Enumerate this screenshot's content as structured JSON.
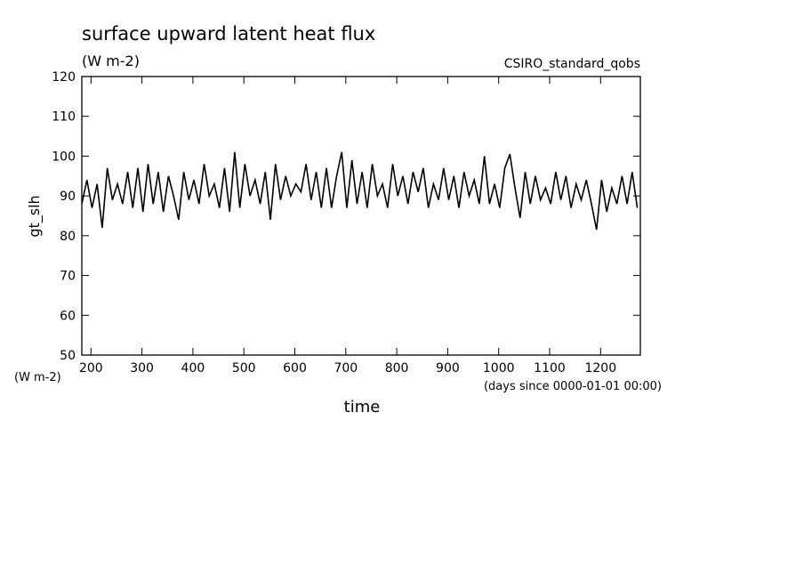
{
  "chart_data": {
    "type": "line",
    "title": "surface upward latent heat flux",
    "subtitle": "(W m-2)",
    "source": "CSIRO_standard_qobs",
    "ylabel": "gt_slh",
    "y_units": "(W m-2)",
    "xlabel": "time",
    "x_units": "(days since 0000-01-01 00:00)",
    "xlim": [
      182,
      1278
    ],
    "ylim": [
      50,
      120
    ],
    "xticks": [
      200,
      300,
      400,
      500,
      600,
      700,
      800,
      900,
      1000,
      1100,
      1200
    ],
    "yticks": [
      50,
      60,
      70,
      80,
      90,
      100,
      110,
      120
    ],
    "x": [
      182,
      192,
      202,
      212,
      222,
      232,
      242,
      252,
      262,
      272,
      282,
      292,
      302,
      312,
      322,
      332,
      342,
      352,
      362,
      372,
      382,
      392,
      402,
      412,
      422,
      432,
      442,
      452,
      462,
      472,
      482,
      492,
      502,
      512,
      522,
      532,
      542,
      552,
      562,
      572,
      582,
      592,
      602,
      612,
      622,
      632,
      642,
      652,
      662,
      672,
      682,
      692,
      702,
      712,
      722,
      732,
      742,
      752,
      762,
      772,
      782,
      792,
      802,
      812,
      822,
      832,
      842,
      852,
      862,
      872,
      882,
      892,
      902,
      912,
      922,
      932,
      942,
      952,
      962,
      972,
      982,
      992,
      1002,
      1012,
      1022,
      1032,
      1042,
      1052,
      1062,
      1072,
      1082,
      1092,
      1102,
      1112,
      1122,
      1132,
      1142,
      1152,
      1162,
      1172,
      1182,
      1192,
      1202,
      1212,
      1222,
      1232,
      1242,
      1252,
      1262,
      1272
    ],
    "series": [
      {
        "name": "gt_slh",
        "color": "#000000",
        "values": [
          88,
          94,
          87,
          93,
          82,
          97,
          89,
          93,
          88,
          96,
          87,
          97,
          86,
          98,
          88,
          96,
          86,
          95,
          90,
          84,
          96,
          89,
          94,
          88,
          98,
          90,
          93,
          87,
          97,
          86,
          101,
          87,
          98,
          90,
          94,
          88,
          96,
          84,
          98,
          89,
          95,
          90,
          93,
          91,
          98,
          89,
          96,
          87,
          97,
          87,
          95,
          101,
          87,
          99,
          88,
          96,
          87,
          98,
          90,
          93,
          87,
          98,
          90,
          95,
          88,
          96,
          91,
          97,
          87,
          93,
          89,
          97,
          89,
          95,
          87,
          96,
          90,
          94,
          88,
          100,
          88,
          93,
          87,
          97,
          100.5,
          92,
          84.5,
          96,
          88,
          95,
          89,
          92,
          88,
          96,
          89,
          95,
          87,
          93,
          89,
          94,
          88,
          81.5,
          94,
          86,
          92,
          88,
          95,
          88,
          96,
          87
        ]
      }
    ]
  }
}
